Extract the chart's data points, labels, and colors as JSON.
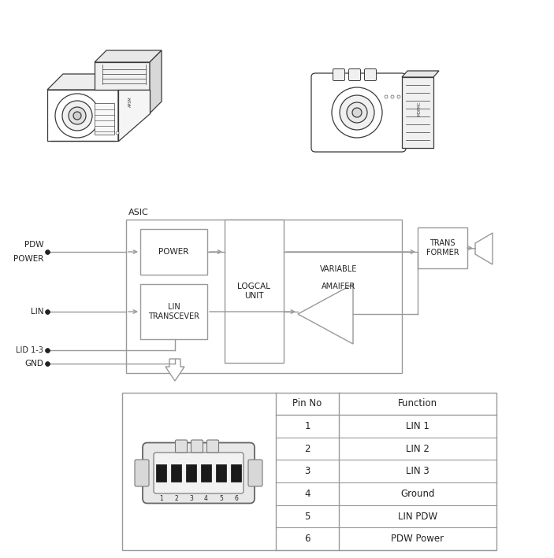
{
  "bg_color": "#ffffff",
  "line_color": "#999999",
  "dark_color": "#222222",
  "fig_width": 7.03,
  "fig_height": 7.09,
  "dpi": 100,
  "asic_label": "ASIC",
  "table_rows": [
    [
      "1",
      "LIN 1"
    ],
    [
      "2",
      "LIN 2"
    ],
    [
      "3",
      "LIN 3"
    ],
    [
      "4",
      "Ground"
    ],
    [
      "5",
      "LIN PDW"
    ],
    [
      "6",
      "PDW Power"
    ]
  ]
}
